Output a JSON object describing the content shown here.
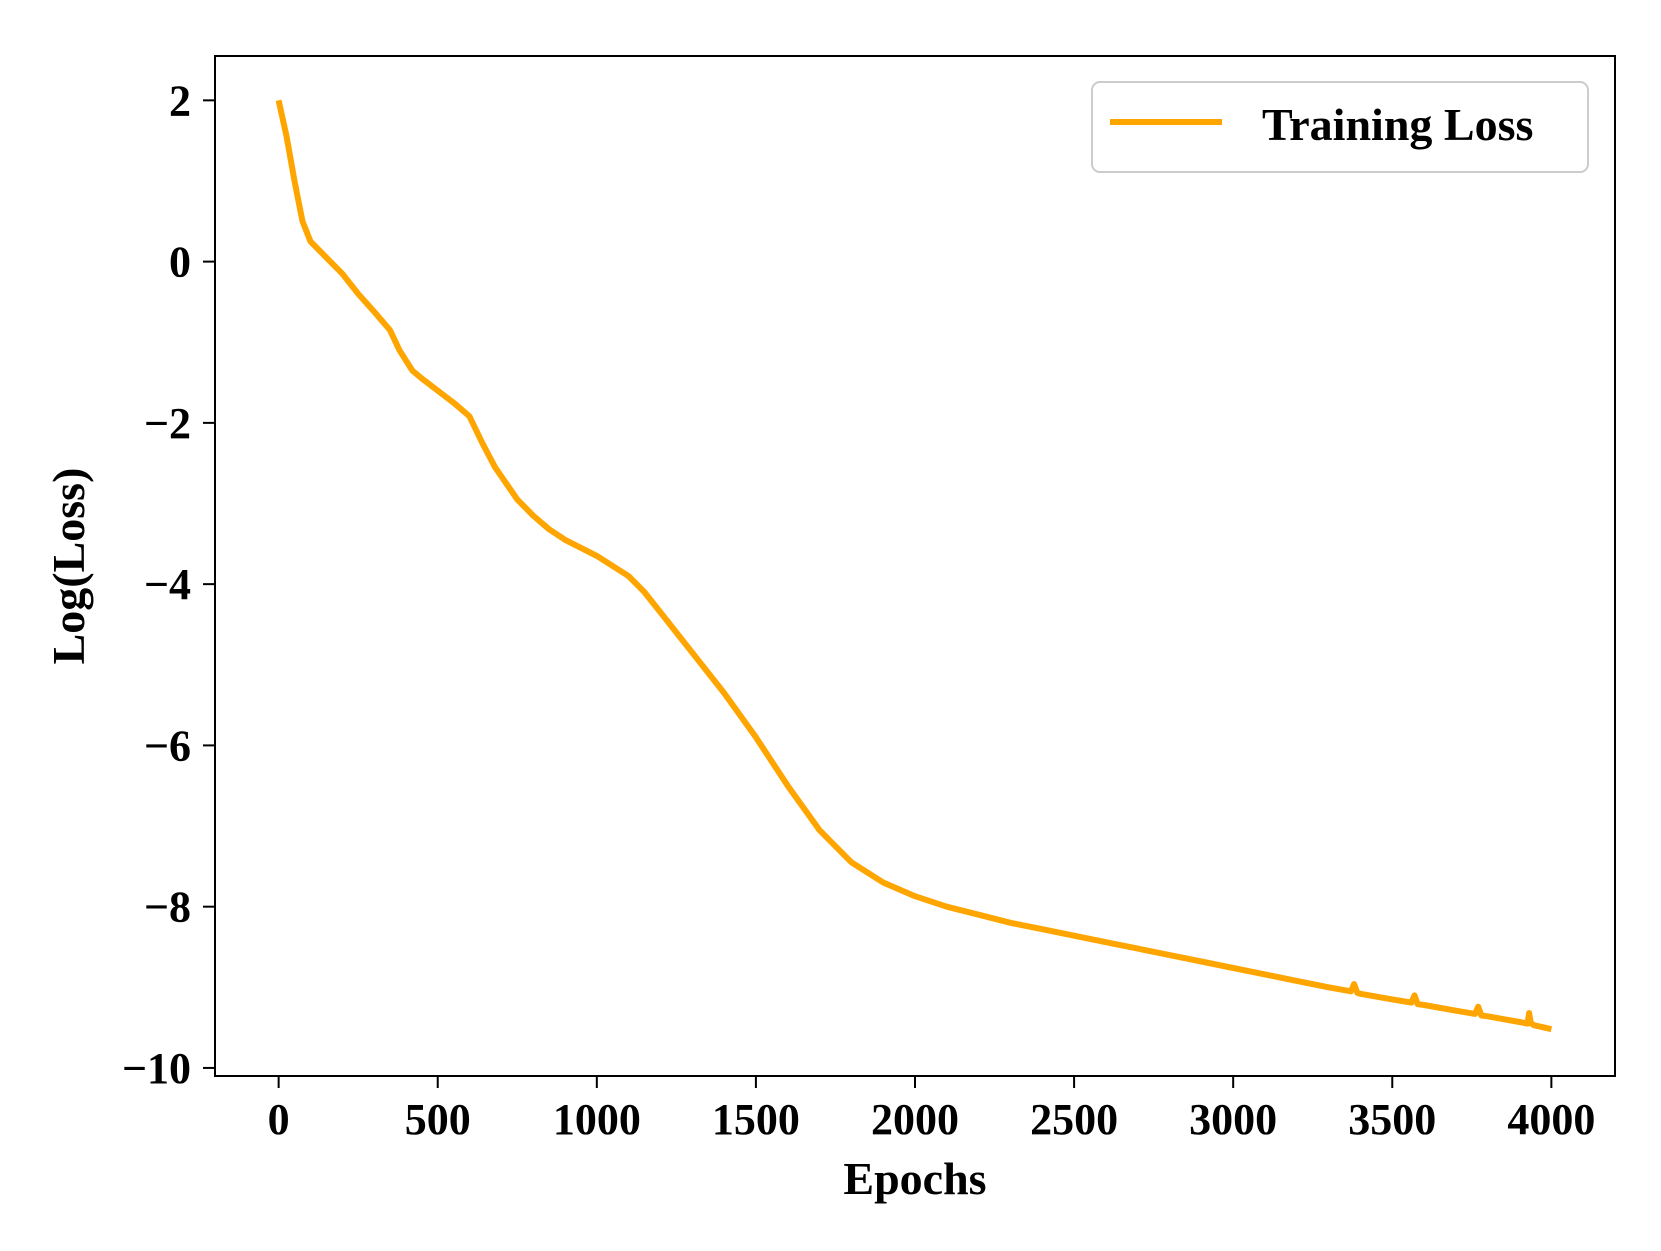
{
  "chart_data": {
    "type": "line",
    "title": "",
    "xlabel": "Epochs",
    "ylabel": "Log(Loss)",
    "xlim": [
      -200,
      4200
    ],
    "ylim": [
      -10.1,
      2.55
    ],
    "xticks": [
      0,
      500,
      1000,
      1500,
      2000,
      2500,
      3000,
      3500,
      4000
    ],
    "yticks": [
      2,
      0,
      -2,
      -4,
      -6,
      -8,
      -10
    ],
    "xtick_labels": [
      "0",
      "500",
      "1000",
      "1500",
      "2000",
      "2500",
      "3000",
      "3500",
      "4000"
    ],
    "ytick_labels": [
      "2",
      "0",
      "−2",
      "−4",
      "−6",
      "−8",
      "−10"
    ],
    "grid": false,
    "legend": {
      "position": "top-right",
      "entries": [
        "Training Loss"
      ]
    },
    "series": [
      {
        "name": "Training Loss",
        "color": "#FFA500",
        "x": [
          0,
          25,
          50,
          75,
          100,
          150,
          200,
          250,
          300,
          350,
          380,
          420,
          450,
          500,
          550,
          600,
          640,
          680,
          750,
          800,
          850,
          900,
          1000,
          1100,
          1150,
          1200,
          1300,
          1400,
          1500,
          1600,
          1700,
          1800,
          1900,
          2000,
          2100,
          2200,
          2300,
          2400,
          2500,
          2600,
          2700,
          2800,
          2900,
          3000,
          3100,
          3200,
          3300,
          3370,
          3380,
          3390,
          3400,
          3500,
          3560,
          3570,
          3580,
          3600,
          3700,
          3760,
          3770,
          3780,
          3800,
          3900,
          3925,
          3930,
          3935,
          3945,
          4000
        ],
        "y": [
          2.0,
          1.55,
          1.0,
          0.5,
          0.25,
          0.05,
          -0.15,
          -0.4,
          -0.62,
          -0.85,
          -1.1,
          -1.35,
          -1.45,
          -1.6,
          -1.75,
          -1.92,
          -2.25,
          -2.55,
          -2.95,
          -3.15,
          -3.32,
          -3.45,
          -3.65,
          -3.9,
          -4.1,
          -4.35,
          -4.85,
          -5.35,
          -5.9,
          -6.5,
          -7.05,
          -7.45,
          -7.7,
          -7.87,
          -8.0,
          -8.1,
          -8.2,
          -8.28,
          -8.36,
          -8.44,
          -8.52,
          -8.6,
          -8.68,
          -8.76,
          -8.84,
          -8.92,
          -9.0,
          -9.05,
          -8.96,
          -9.07,
          -9.08,
          -9.15,
          -9.19,
          -9.1,
          -9.21,
          -9.22,
          -9.29,
          -9.33,
          -9.24,
          -9.35,
          -9.36,
          -9.43,
          -9.45,
          -9.32,
          -9.44,
          -9.47,
          -9.52
        ]
      }
    ]
  }
}
